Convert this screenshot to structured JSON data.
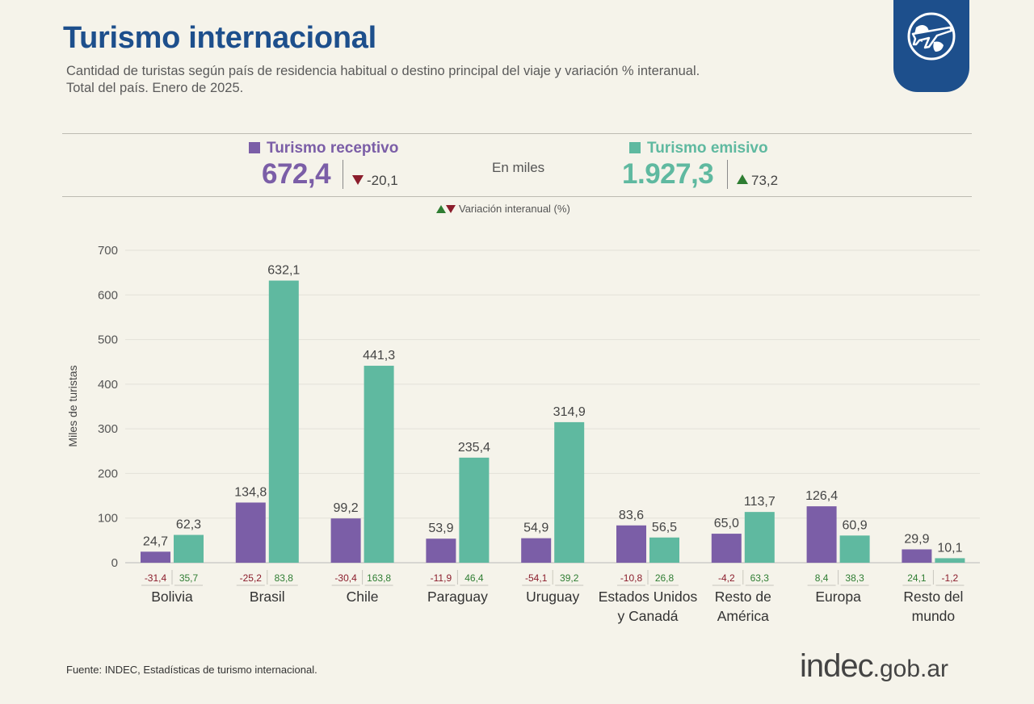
{
  "header": {
    "title": "Turismo internacional",
    "subtitle_line1": "Cantidad de turistas según país de residencia habitual o destino principal del viaje y variación % interanual.",
    "subtitle_line2": "Total del país. Enero de 2025."
  },
  "badge_icon": "globe-airplane-icon",
  "summary": {
    "receptivo_label": "Turismo receptivo",
    "receptivo_total": "672,4",
    "receptivo_var": "-20,1",
    "emisivo_label": "Turismo emisivo",
    "emisivo_total": "1.927,3",
    "emisivo_var": "73,2",
    "units": "En miles",
    "variation_legend": "Variación interanual (%)"
  },
  "colors": {
    "receptivo": "#7b5ea7",
    "emisivo": "#5fb9a0",
    "title": "#1d4f8c",
    "negative": "#8b1d2c",
    "positive": "#2e7d32"
  },
  "chart_data": {
    "type": "bar",
    "ylabel": "Miles de turistas",
    "ylim": [
      0,
      700
    ],
    "yticks": [
      0,
      100,
      200,
      300,
      400,
      500,
      600,
      700
    ],
    "grid": true,
    "categories": [
      [
        "Bolivia"
      ],
      [
        "Brasil"
      ],
      [
        "Chile"
      ],
      [
        "Paraguay"
      ],
      [
        "Uruguay"
      ],
      [
        "Estados Unidos",
        "y Canadá"
      ],
      [
        "Resto de",
        "América"
      ],
      [
        "Europa"
      ],
      [
        "Resto del",
        "mundo"
      ]
    ],
    "series": [
      {
        "name": "Turismo receptivo",
        "values": [
          24.7,
          134.8,
          99.2,
          53.9,
          54.9,
          83.6,
          65.0,
          126.4,
          29.9
        ],
        "labels": [
          "24,7",
          "134,8",
          "99,2",
          "53,9",
          "54,9",
          "83,6",
          "65,0",
          "126,4",
          "29,9"
        ],
        "variation": [
          "-31,4",
          "-25,2",
          "-30,4",
          "-11,9",
          "-54,1",
          "-10,8",
          "-4,2",
          "8,4",
          "24,1"
        ]
      },
      {
        "name": "Turismo emisivo",
        "values": [
          62.3,
          632.1,
          441.3,
          235.4,
          314.9,
          56.5,
          113.7,
          60.9,
          10.1
        ],
        "labels": [
          "62,3",
          "632,1",
          "441,3",
          "235,4",
          "314,9",
          "56,5",
          "113,7",
          "60,9",
          "10,1"
        ],
        "variation": [
          "35,7",
          "83,8",
          "163,8",
          "46,4",
          "39,2",
          "26,8",
          "63,3",
          "38,3",
          "-1,2"
        ]
      }
    ]
  },
  "footer": {
    "source": "Fuente: INDEC, Estadísticas de turismo internacional.",
    "logo_main": "indec",
    "logo_suffix": ".gob.ar"
  }
}
